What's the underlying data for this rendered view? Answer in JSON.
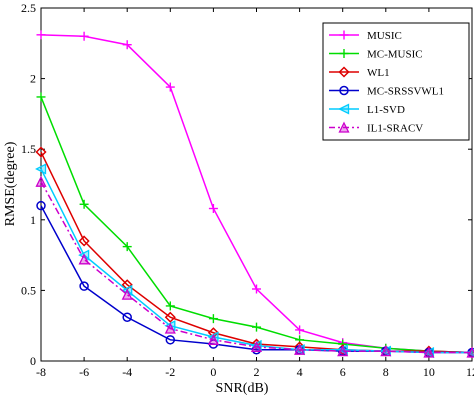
{
  "chart_data": {
    "type": "line",
    "title": "",
    "xlabel": "SNR(dB)",
    "ylabel": "RMSE(degree)",
    "xlim": [
      -8,
      12
    ],
    "ylim": [
      0,
      2.5
    ],
    "grid": false,
    "legend_position": "top-right",
    "x": [
      -8,
      -6,
      -4,
      -2,
      0,
      2,
      4,
      6,
      8,
      10,
      12
    ],
    "xticks": [
      "-8",
      "-6",
      "-4",
      "-2",
      "0",
      "2",
      "4",
      "6",
      "8",
      "10",
      "12"
    ],
    "yticks": [
      "0",
      "0.5",
      "1",
      "1.5",
      "2",
      "2.5"
    ],
    "series": [
      {
        "name": "MUSIC",
        "color": "#ff00ff",
        "marker": "plus",
        "dash": "solid",
        "values": [
          2.31,
          2.3,
          2.24,
          1.94,
          1.08,
          0.51,
          0.22,
          0.13,
          0.09,
          0.07,
          0.06
        ]
      },
      {
        "name": "MC-MUSIC",
        "color": "#00dd00",
        "marker": "plus",
        "dash": "solid",
        "values": [
          1.87,
          1.11,
          0.81,
          0.39,
          0.3,
          0.24,
          0.15,
          0.12,
          0.09,
          0.07,
          0.06
        ]
      },
      {
        "name": "WL1",
        "color": "#dd0000",
        "marker": "diamond",
        "dash": "solid",
        "values": [
          1.48,
          0.85,
          0.54,
          0.31,
          0.2,
          0.12,
          0.1,
          0.08,
          0.07,
          0.07,
          0.06
        ]
      },
      {
        "name": "MC-SRSSVWL1",
        "color": "#0000cc",
        "marker": "circle",
        "dash": "solid",
        "values": [
          1.1,
          0.53,
          0.31,
          0.15,
          0.12,
          0.08,
          0.08,
          0.07,
          0.07,
          0.06,
          0.06
        ]
      },
      {
        "name": "L1-SVD",
        "color": "#00ccff",
        "marker": "triangle-left",
        "dash": "solid",
        "values": [
          1.36,
          0.75,
          0.5,
          0.25,
          0.17,
          0.11,
          0.08,
          0.08,
          0.07,
          0.06,
          0.06
        ]
      },
      {
        "name": "IL1-SRACV",
        "color": "#cc00cc",
        "marker": "triangle-up",
        "dash": "dashdot",
        "values": [
          1.27,
          0.72,
          0.47,
          0.23,
          0.15,
          0.1,
          0.08,
          0.07,
          0.07,
          0.06,
          0.06
        ]
      }
    ]
  }
}
